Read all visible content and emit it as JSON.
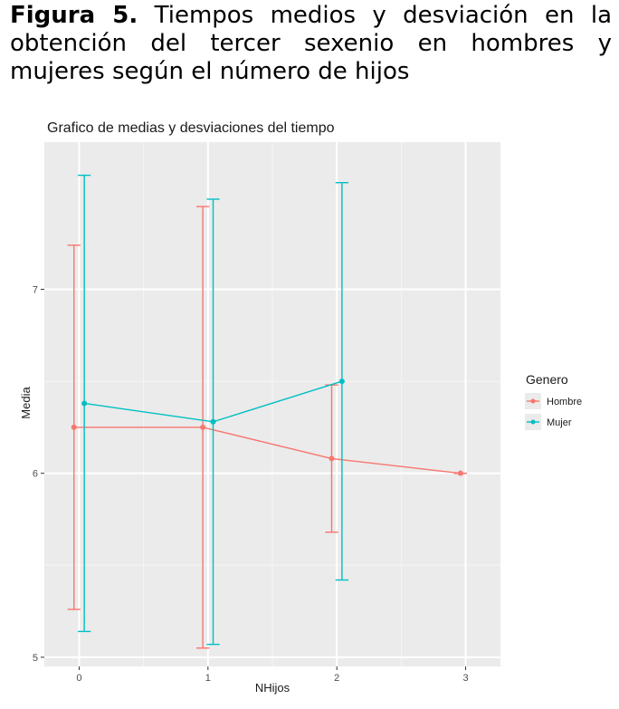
{
  "caption": {
    "bold": "Figura 5.",
    "text": "Tiempos medios y desviación en la obtención del tercer sexenio en hombres y mujeres según el número de hijos"
  },
  "chart_data": {
    "type": "line",
    "title": "Grafico de medias y desviaciones del tiempo",
    "xlabel": "NHijos",
    "ylabel": "Media",
    "x": [
      0,
      1,
      2,
      3
    ],
    "x_ticks": [
      "0",
      "1",
      "2",
      "3"
    ],
    "y_ticks": [
      "5",
      "6",
      "7"
    ],
    "xlim": [
      -0.27,
      3.27
    ],
    "ylim": [
      4.95,
      7.8
    ],
    "grid": true,
    "legend_position": "right",
    "legend_title": "Genero",
    "series": [
      {
        "name": "Hombre",
        "color": "#F8766D",
        "points": [
          {
            "x": 0,
            "mean": 6.25,
            "low": 5.26,
            "high": 7.24
          },
          {
            "x": 1,
            "mean": 6.25,
            "low": 5.05,
            "high": 7.45
          },
          {
            "x": 2,
            "mean": 6.08,
            "low": 5.68,
            "high": 6.48
          },
          {
            "x": 3,
            "mean": 6.0,
            "low": 6.0,
            "high": 6.0
          }
        ]
      },
      {
        "name": "Mujer",
        "color": "#00BFC4",
        "points": [
          {
            "x": 0,
            "mean": 6.38,
            "low": 5.14,
            "high": 7.62
          },
          {
            "x": 1,
            "mean": 6.28,
            "low": 5.07,
            "high": 7.49
          },
          {
            "x": 2,
            "mean": 6.5,
            "low": 5.42,
            "high": 7.58
          }
        ]
      }
    ]
  }
}
